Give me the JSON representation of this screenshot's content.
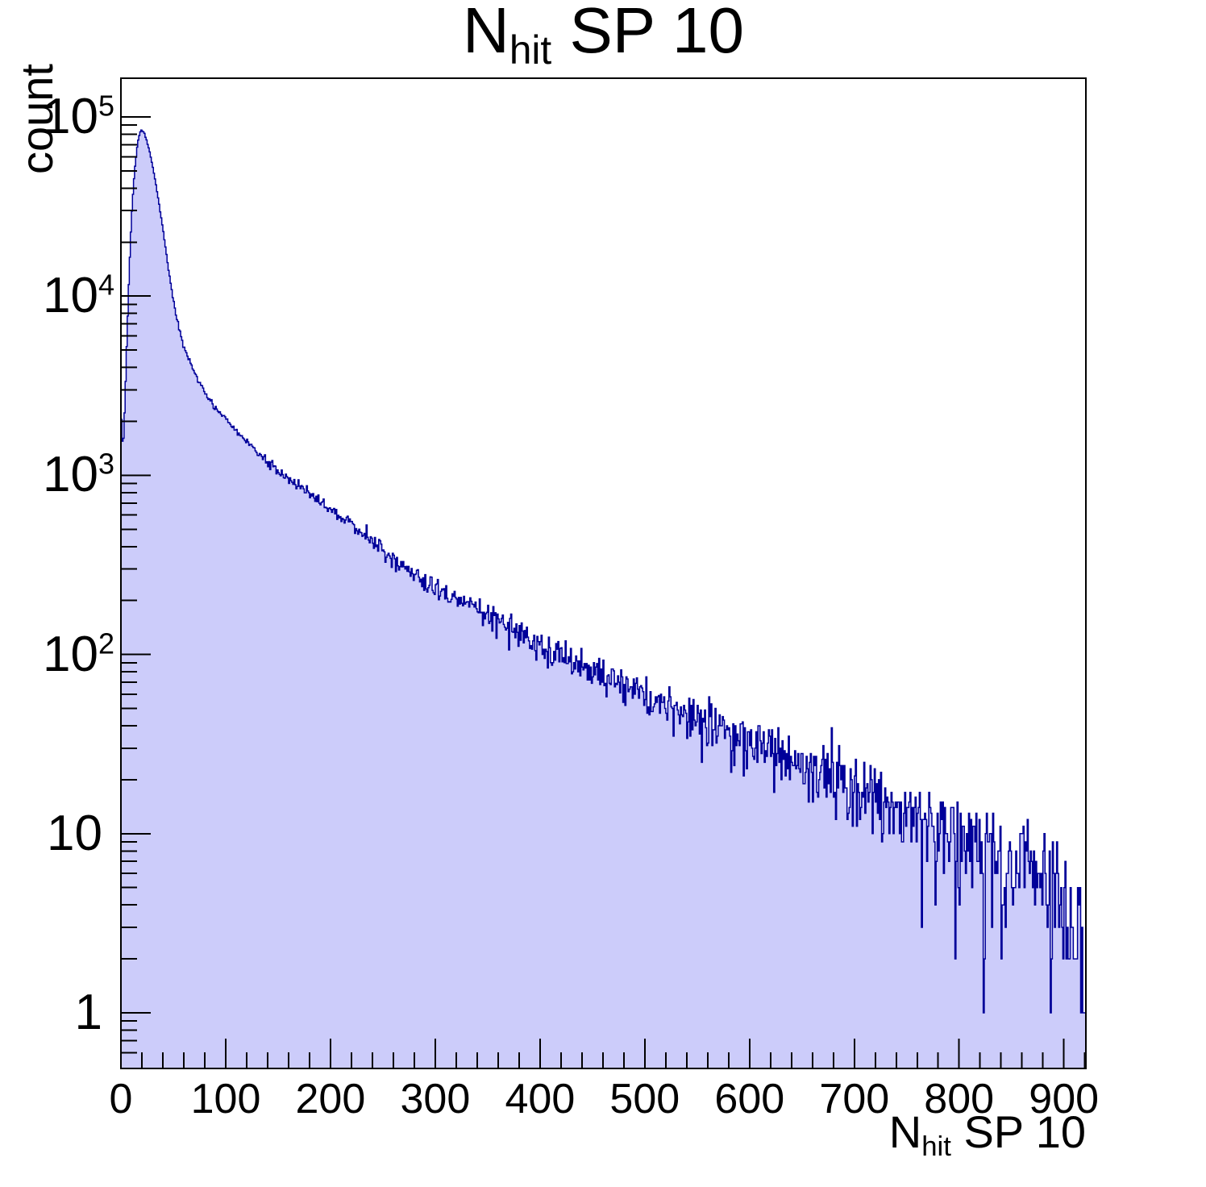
{
  "title": {
    "prefix": "N",
    "subscript": "hit",
    "suffix": " SP 10",
    "text": "N_hit SP 10"
  },
  "axes": {
    "y": {
      "title": "count",
      "scale": "log10",
      "major_labels": [
        {
          "base": "10",
          "sup": "5"
        },
        {
          "base": "10",
          "sup": "4"
        },
        {
          "base": "10",
          "sup": "3"
        },
        {
          "base": "10",
          "sup": "2"
        },
        {
          "base": "10",
          "sup": ""
        },
        {
          "base": "1",
          "sup": ""
        }
      ]
    },
    "x": {
      "title_prefix": "N",
      "title_subscript": "hit",
      "title_suffix": " SP 10",
      "tick_values": [
        0,
        100,
        200,
        300,
        400,
        500,
        600,
        700,
        800,
        900
      ],
      "minor_step": 20
    }
  },
  "chart_data": {
    "type": "bar",
    "subtype": "histogram-1d",
    "title": "N_hit SP 10",
    "xlabel": "N_hit SP 10",
    "ylabel": "count",
    "x_range": [
      0,
      921
    ],
    "y_range": [
      0.5,
      165000
    ],
    "y_scale": "log10",
    "grid": false,
    "legend": false,
    "bins": 921,
    "bin_width": 1,
    "peak": {
      "x": 19,
      "count": 85000
    },
    "first_bin": {
      "count": 2400,
      "dip_x": 2,
      "dip_count": 1350
    },
    "envelope": {
      "x": [
        0,
        2,
        4,
        6,
        8,
        10,
        13,
        16,
        19,
        22,
        25,
        28,
        32,
        36,
        40,
        45,
        50,
        55,
        60,
        70,
        80,
        90,
        100,
        115,
        130,
        150,
        170,
        190,
        210,
        235,
        260,
        285,
        310,
        340,
        370,
        400,
        440,
        480,
        520,
        560,
        600,
        640,
        680,
        720,
        760,
        800,
        840,
        870,
        890,
        905,
        915,
        921
      ],
      "count": [
        2400,
        1350,
        2600,
        6500,
        14000,
        27000,
        50000,
        72000,
        85000,
        82000,
        73000,
        62000,
        47000,
        34000,
        24000,
        14500,
        9500,
        6800,
        5200,
        3800,
        2900,
        2400,
        2050,
        1650,
        1350,
        1050,
        870,
        720,
        590,
        460,
        330,
        265,
        215,
        180,
        145,
        112,
        88,
        68,
        52,
        42,
        34,
        27,
        21,
        16,
        13,
        10,
        7.5,
        6,
        5,
        3,
        1.5,
        1
      ]
    },
    "noise_model": "poisson",
    "seed": 20,
    "colors": {
      "fill": "#ccccfa",
      "line": "#000099",
      "axis": "#000000",
      "background": "#ffffff"
    }
  }
}
